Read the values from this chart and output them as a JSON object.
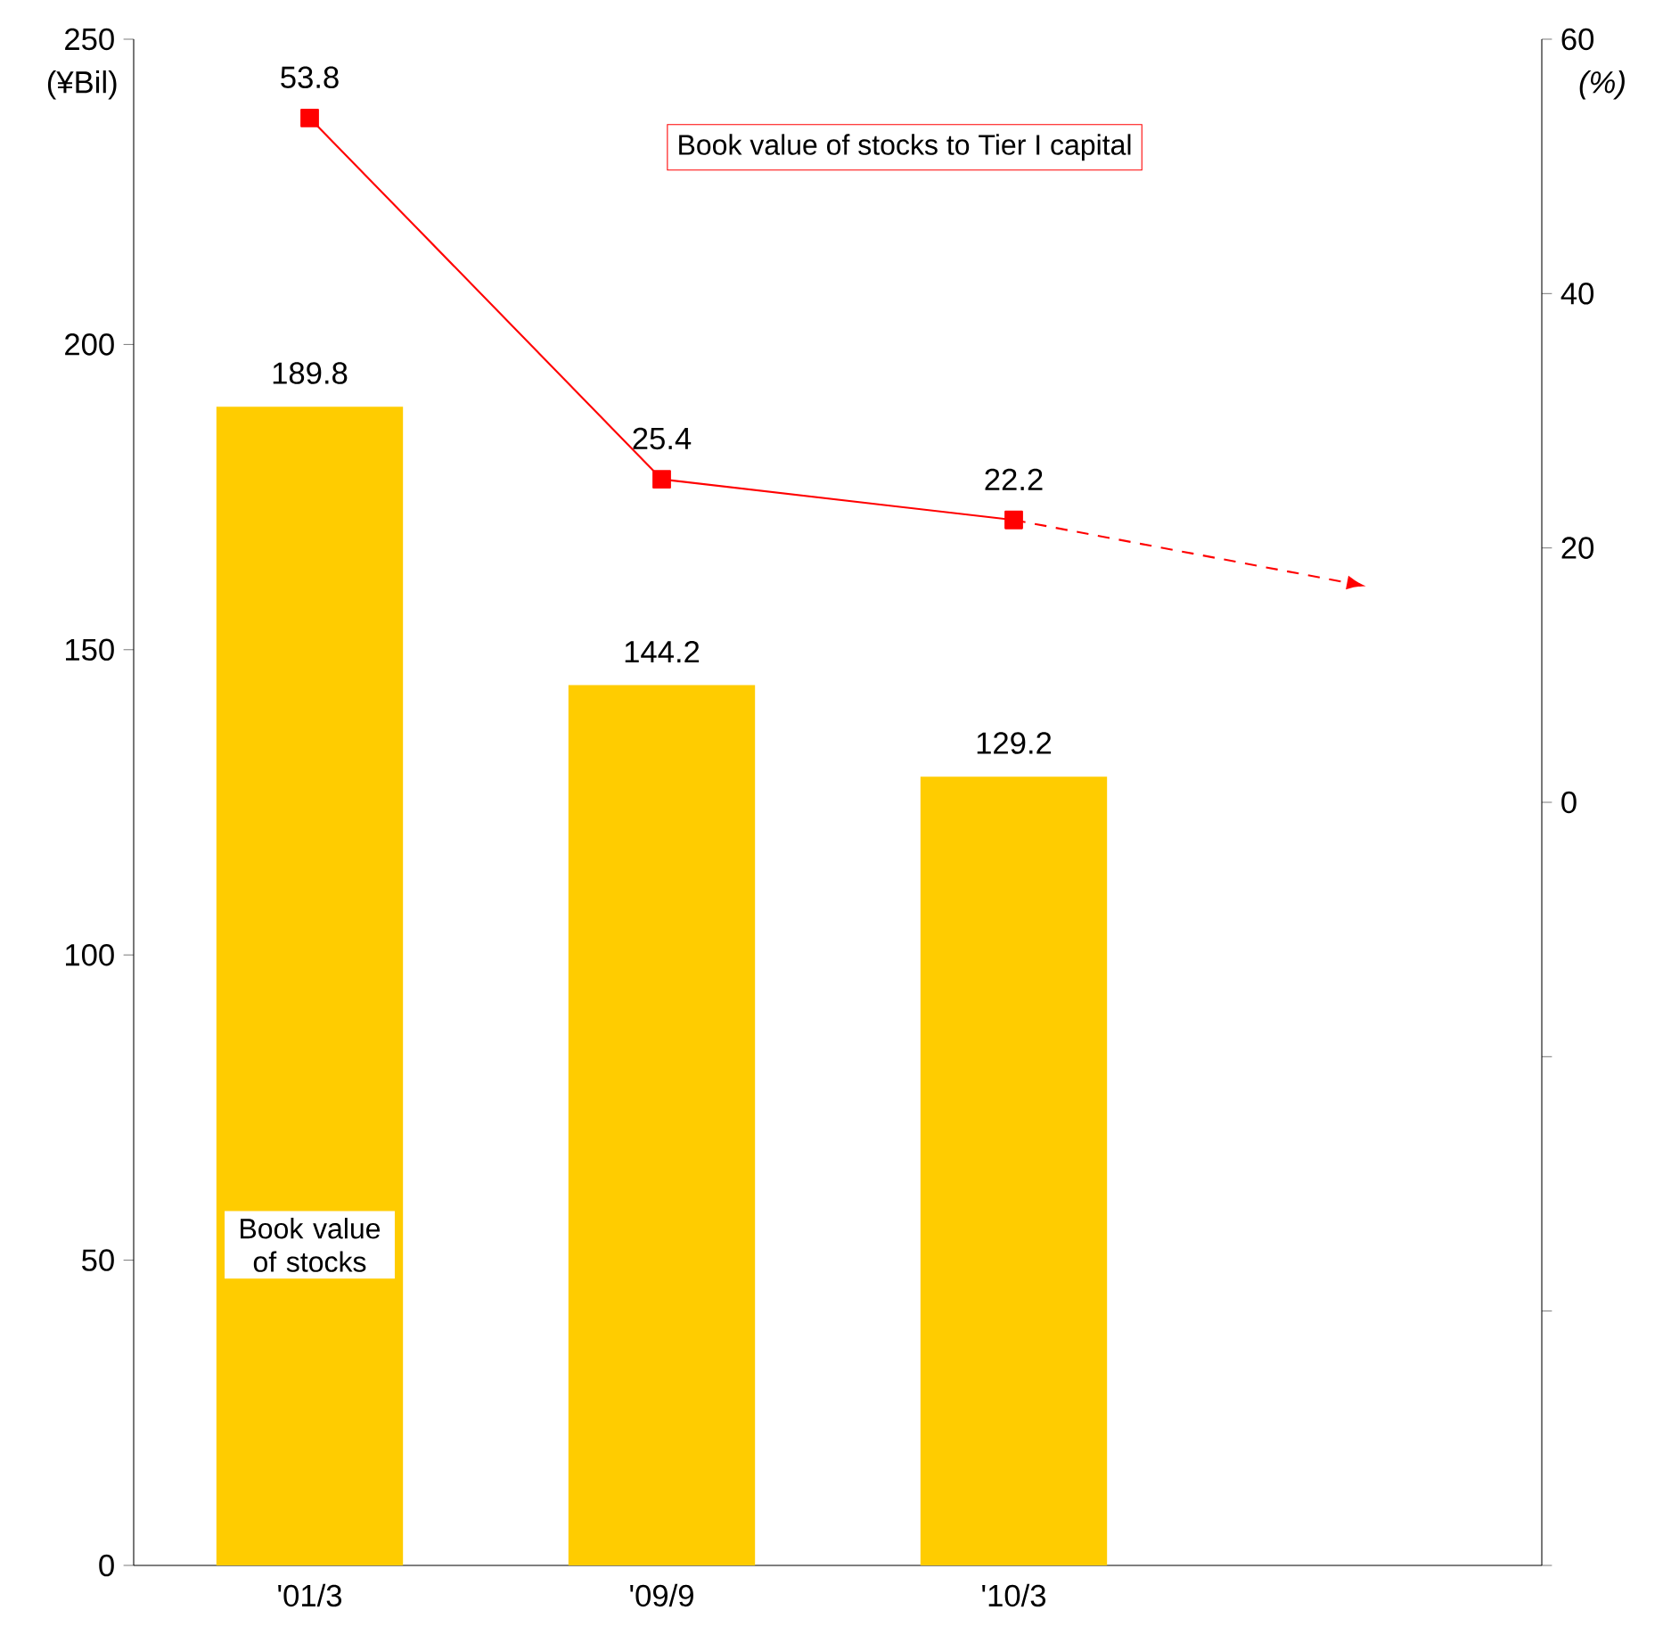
{
  "chart_data": {
    "type": "bar",
    "categories": [
      "'01/3",
      "'09/9",
      "'10/3",
      null
    ],
    "series": [
      {
        "name": "Book value of stocks",
        "color": "#ffcc00",
        "values": [
          189.8,
          144.2,
          129.2,
          null
        ],
        "value_labels": [
          "189.8",
          "144.2",
          "129.2",
          null
        ]
      },
      {
        "name": "Book value of stocks to Tier I capital",
        "type": "line",
        "axis": "y2",
        "color": "#ff0000",
        "marker": "square",
        "values": [
          53.8,
          25.4,
          22.2,
          null
        ],
        "value_labels": [
          "53.8",
          "25.4",
          "22.2",
          null
        ]
      },
      {
        "type": "line",
        "axis": "y2",
        "color": "#ff0000",
        "marker": "none",
        "line_style": "dashed",
        "values": [
          null,
          null,
          22.2,
          17
        ]
      }
    ],
    "ylabel": "(¥Bil)",
    "y2label": "(%)",
    "ylim": [
      0,
      250
    ],
    "yticks": [
      0,
      50,
      100,
      150,
      200,
      250
    ],
    "y2lim": [
      -60,
      60
    ],
    "y2ticks": [
      {
        "value": -60,
        "label": null
      },
      {
        "value": -40,
        "label": null
      },
      {
        "value": -20,
        "label": null
      },
      0,
      20,
      40,
      60
    ],
    "grid": false
  }
}
